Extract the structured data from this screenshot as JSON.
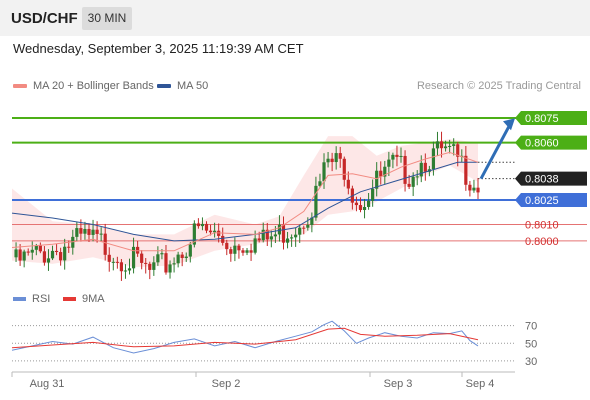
{
  "header": {
    "pair": "USD/CHF",
    "timeframe": "30 MIN"
  },
  "datetime": "Wednesday, September 3, 2025 11:19:39 AM CET",
  "legend": {
    "ma20_label": "MA 20 + Bollinger Bands",
    "ma50_label": "MA 50",
    "credit": "Research © 2025 Trading Central"
  },
  "colors": {
    "candle_up": "#2e7d32",
    "candle_down": "#c62828",
    "ma20": "#f28b82",
    "bollinger_fill": "#fde3e3",
    "ma50": "#2f5597",
    "resistance": "#4caf16",
    "pivot": "#3f6fd8",
    "support": "#e57373",
    "last_price": "#222222",
    "arrow": "#2f6db5",
    "rsi": "#6b8fd6",
    "rsi_ma": "#e53935"
  },
  "rsi_legend": {
    "rsi_label": "RSI",
    "ma_label": "9MA"
  },
  "chart_data": [
    {
      "type": "candlestick",
      "ylim": [
        0.7967,
        0.8086
      ],
      "x": [
        "Aug 31",
        "Sep 2",
        "Sep 3",
        "Sep 4"
      ],
      "levels": [
        {
          "value": "0.8075",
          "kind": "resistance"
        },
        {
          "value": "0.8060",
          "kind": "resistance"
        },
        {
          "value": "0.8038",
          "kind": "last"
        },
        {
          "value": "0.8025",
          "kind": "pivot"
        },
        {
          "value": "0.8010",
          "kind": "support"
        },
        {
          "value": "0.8000",
          "kind": "support"
        }
      ],
      "close_path": [
        [
          0,
          0.799
        ],
        [
          6,
          0.7996
        ],
        [
          12,
          0.8
        ],
        [
          18,
          0.8006
        ],
        [
          22,
          0.8003
        ],
        [
          26,
          0.7996
        ],
        [
          30,
          0.7992
        ],
        [
          34,
          0.7985
        ],
        [
          38,
          0.799
        ],
        [
          42,
          0.7999
        ],
        [
          46,
          0.8011
        ],
        [
          50,
          0.8008
        ],
        [
          54,
          0.8002
        ],
        [
          58,
          0.8005
        ],
        [
          62,
          0.8004
        ],
        [
          66,
          0.8009
        ],
        [
          70,
          0.8014
        ],
        [
          74,
          0.8026
        ],
        [
          78,
          0.8053
        ],
        [
          82,
          0.805
        ],
        [
          84,
          0.8036
        ],
        [
          86,
          0.8028
        ],
        [
          90,
          0.804
        ],
        [
          94,
          0.805
        ],
        [
          98,
          0.8046
        ],
        [
          102,
          0.8055
        ],
        [
          106,
          0.8058
        ],
        [
          110,
          0.8054
        ],
        [
          113,
          0.8044
        ],
        [
          115,
          0.8039
        ]
      ],
      "ma20_path": [
        [
          0,
          0.7996
        ],
        [
          10,
          0.7998
        ],
        [
          20,
          0.8001
        ],
        [
          30,
          0.7994
        ],
        [
          40,
          0.7994
        ],
        [
          50,
          0.8005
        ],
        [
          60,
          0.8004
        ],
        [
          66,
          0.8008
        ],
        [
          72,
          0.8018
        ],
        [
          78,
          0.804
        ],
        [
          84,
          0.8041
        ],
        [
          90,
          0.8038
        ],
        [
          96,
          0.8045
        ],
        [
          102,
          0.805
        ],
        [
          108,
          0.8054
        ],
        [
          115,
          0.8048
        ]
      ],
      "bb_upper_path": [
        [
          0,
          0.8032
        ],
        [
          10,
          0.8012
        ],
        [
          20,
          0.801
        ],
        [
          30,
          0.8004
        ],
        [
          40,
          0.8004
        ],
        [
          50,
          0.8016
        ],
        [
          60,
          0.801
        ],
        [
          66,
          0.8015
        ],
        [
          72,
          0.804
        ],
        [
          78,
          0.8064
        ],
        [
          84,
          0.8064
        ],
        [
          90,
          0.8052
        ],
        [
          96,
          0.8058
        ],
        [
          102,
          0.806
        ],
        [
          108,
          0.8062
        ],
        [
          115,
          0.806
        ]
      ],
      "bb_lower_path": [
        [
          0,
          0.7988
        ],
        [
          10,
          0.7986
        ],
        [
          20,
          0.799
        ],
        [
          30,
          0.7984
        ],
        [
          40,
          0.7985
        ],
        [
          50,
          0.7994
        ],
        [
          60,
          0.7998
        ],
        [
          66,
          0.8001
        ],
        [
          72,
          0.8004
        ],
        [
          78,
          0.8016
        ],
        [
          84,
          0.8018
        ],
        [
          90,
          0.8024
        ],
        [
          96,
          0.8032
        ],
        [
          102,
          0.804
        ],
        [
          108,
          0.8046
        ],
        [
          115,
          0.8036
        ]
      ],
      "ma50_path": [
        [
          0,
          0.8017
        ],
        [
          10,
          0.8014
        ],
        [
          20,
          0.801
        ],
        [
          30,
          0.8004
        ],
        [
          40,
          0.8
        ],
        [
          50,
          0.8001
        ],
        [
          60,
          0.8004
        ],
        [
          70,
          0.8008
        ],
        [
          78,
          0.802
        ],
        [
          86,
          0.803
        ],
        [
          94,
          0.8036
        ],
        [
          102,
          0.8042
        ],
        [
          110,
          0.8048
        ],
        [
          115,
          0.8048
        ]
      ]
    },
    {
      "type": "line",
      "ylabel_ticks": [
        "70",
        "50",
        "30"
      ],
      "ylim": [
        22,
        82
      ],
      "series": [
        {
          "name": "RSI",
          "points": [
            [
              0,
              42
            ],
            [
              5,
              47
            ],
            [
              10,
              52
            ],
            [
              15,
              49
            ],
            [
              20,
              57
            ],
            [
              25,
              45
            ],
            [
              30,
              39
            ],
            [
              35,
              44
            ],
            [
              40,
              51
            ],
            [
              45,
              55
            ],
            [
              50,
              47
            ],
            [
              55,
              52
            ],
            [
              60,
              45
            ],
            [
              65,
              52
            ],
            [
              70,
              58
            ],
            [
              74,
              63
            ],
            [
              77,
              71
            ],
            [
              79,
              75
            ],
            [
              82,
              64
            ],
            [
              85,
              50
            ],
            [
              88,
              56
            ],
            [
              92,
              62
            ],
            [
              96,
              58
            ],
            [
              100,
              56
            ],
            [
              104,
              62
            ],
            [
              108,
              61
            ],
            [
              111,
              64
            ],
            [
              113,
              53
            ],
            [
              115,
              47
            ]
          ]
        },
        {
          "name": "9MA",
          "points": [
            [
              0,
              45
            ],
            [
              10,
              48
            ],
            [
              20,
              51
            ],
            [
              30,
              46
            ],
            [
              40,
              47
            ],
            [
              50,
              51
            ],
            [
              60,
              49
            ],
            [
              70,
              54
            ],
            [
              78,
              66
            ],
            [
              82,
              67
            ],
            [
              86,
              60
            ],
            [
              92,
              58
            ],
            [
              100,
              59
            ],
            [
              108,
              61
            ],
            [
              115,
              54
            ]
          ]
        }
      ]
    }
  ]
}
